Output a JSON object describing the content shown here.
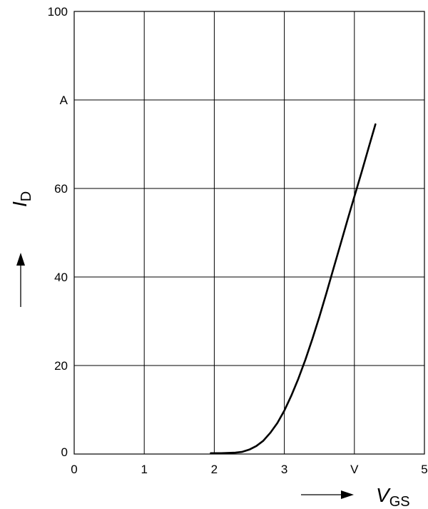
{
  "chart_data": {
    "type": "line",
    "xlabel": {
      "symbol": "V",
      "subscript": "GS"
    },
    "ylabel": {
      "symbol": "I",
      "subscript": "D"
    },
    "x_unit": "V",
    "y_unit": "A",
    "xlim": [
      0,
      5
    ],
    "ylim": [
      0,
      100
    ],
    "x_ticks": [
      "0",
      "1",
      "2",
      "3",
      "V",
      "5"
    ],
    "y_ticks": [
      "0",
      "20",
      "40",
      "60",
      "A",
      "100"
    ],
    "origin_x_label": "0",
    "grid": true,
    "series": [
      {
        "x": [
          1.95,
          2.1,
          2.3,
          2.4,
          2.5,
          2.6,
          2.7,
          2.8,
          2.9,
          3.0,
          3.1,
          3.2,
          3.3,
          3.4,
          3.5,
          3.6,
          3.7,
          3.8,
          3.9,
          4.0,
          4.1,
          4.2,
          4.3
        ],
        "y": [
          0.2,
          0.2,
          0.3,
          0.5,
          1.0,
          1.8,
          3.0,
          4.8,
          7.0,
          9.8,
          13.2,
          17.0,
          21.3,
          26.0,
          31.0,
          36.3,
          41.8,
          47.3,
          52.8,
          58.2,
          63.5,
          69.0,
          74.5
        ],
        "color": "#000000"
      }
    ]
  }
}
